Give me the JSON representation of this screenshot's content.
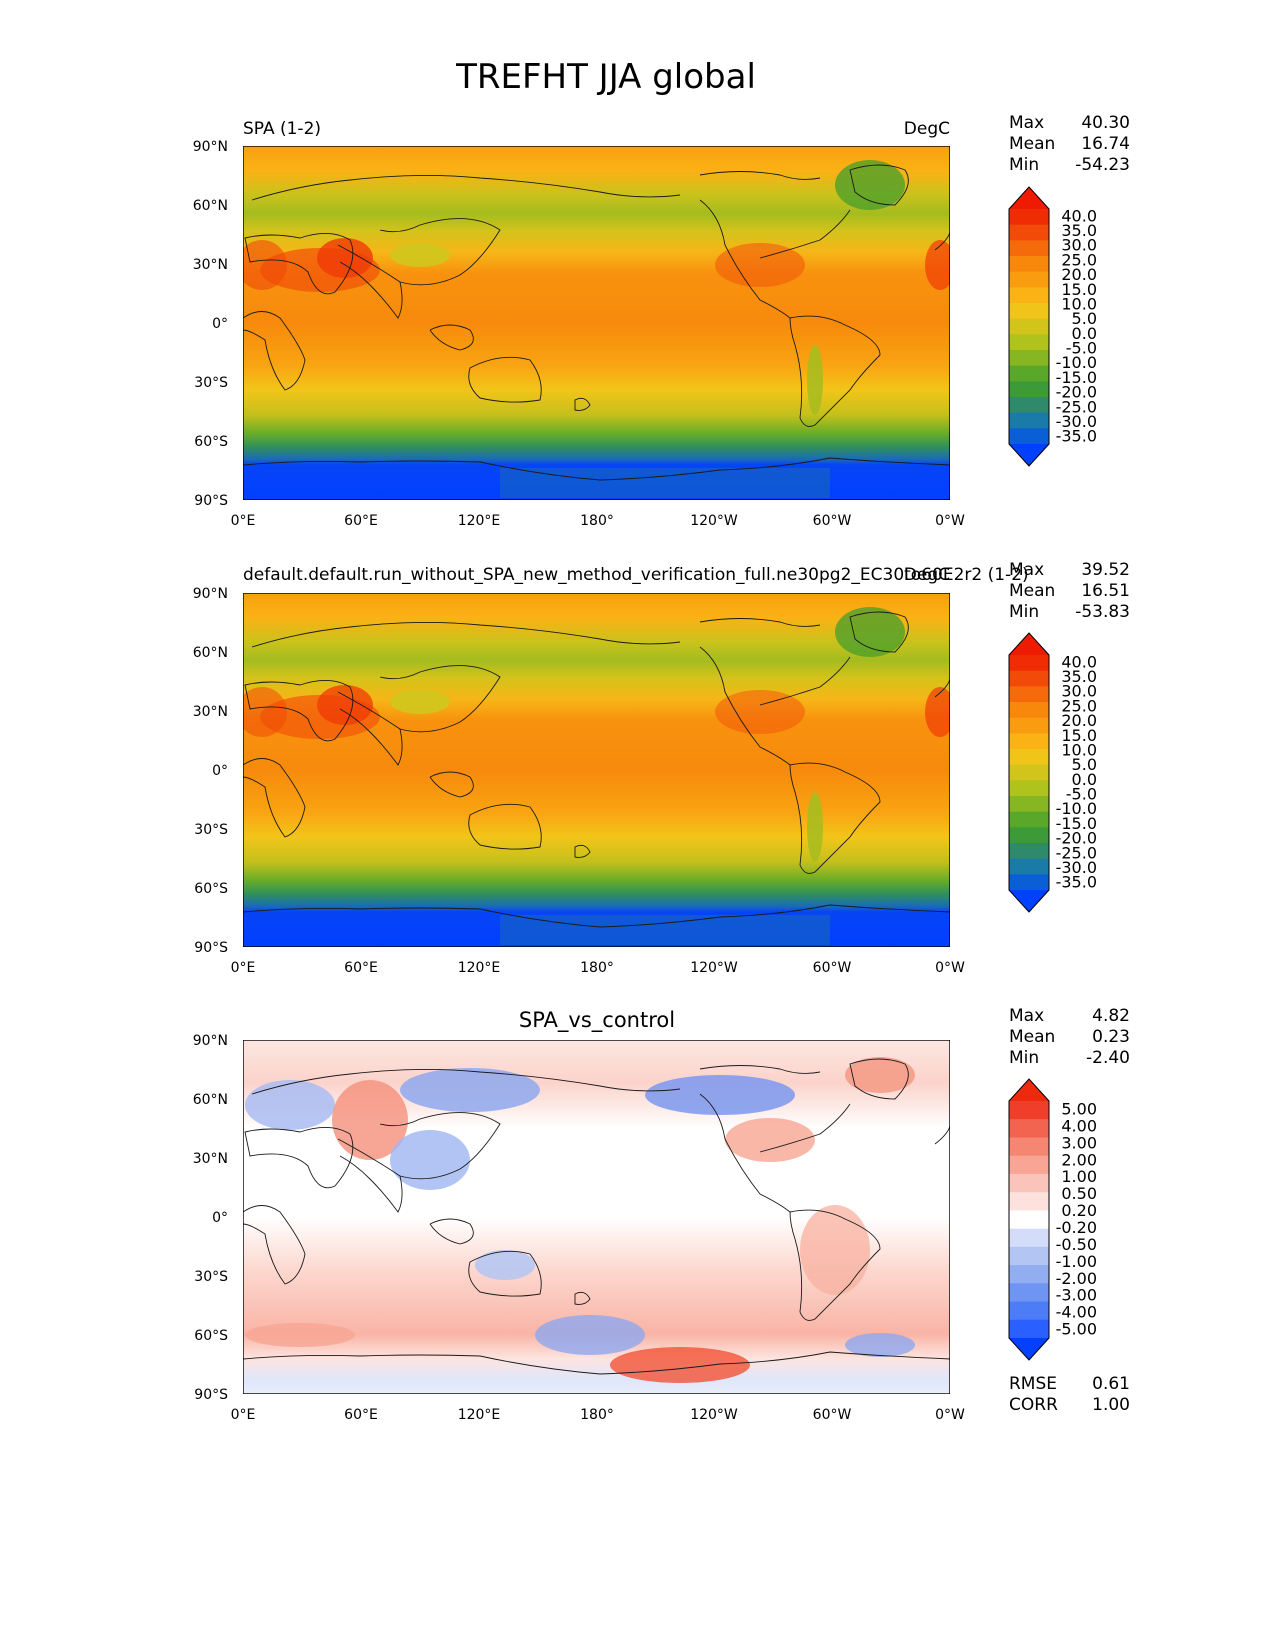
{
  "figure": {
    "title": "TREFHT JJA global"
  },
  "axes": {
    "lon_ticks": [
      "0°E",
      "60°E",
      "120°E",
      "180°",
      "120°W",
      "60°W",
      "0°W"
    ],
    "lat_ticks": [
      "90°N",
      "60°N",
      "30°N",
      "0°",
      "30°S",
      "60°S",
      "90°S"
    ]
  },
  "colors": {
    "abs_palette": [
      "#0040ff",
      "#0a5fd6",
      "#1a7aa8",
      "#2e8a6a",
      "#3c9a38",
      "#5aa82a",
      "#86b622",
      "#b0c21c",
      "#d2c41a",
      "#f0c419",
      "#fab215",
      "#fa9c10",
      "#f8880c",
      "#f56a0a",
      "#f24a08",
      "#f02c05",
      "#ee1a02"
    ],
    "diff_palette": [
      "#0540ff",
      "#2a60ff",
      "#4d7cf7",
      "#6f95f2",
      "#92adf0",
      "#b3c5f3",
      "#d3dcf8",
      "#ffffff",
      "#fde1dc",
      "#fbc4ba",
      "#f8a595",
      "#f58672",
      "#f26450",
      "#ef3f2b",
      "#ee2a0d"
    ],
    "land_outline": "#1a1a1a"
  },
  "panels": [
    {
      "name_left": "SPA (1-2)",
      "name_right": "DegC",
      "name_center": "",
      "stats": {
        "max_label": "Max",
        "max": "40.30",
        "mean_label": "Mean",
        "mean": "16.74",
        "min_label": "Min",
        "min": "-54.23"
      },
      "colorbar_labels": [
        "40.0",
        "35.0",
        "30.0",
        "25.0",
        "20.0",
        "15.0",
        "10.0",
        "5.0",
        "0.0",
        "-5.0",
        "-10.0",
        "-15.0",
        "-20.0",
        "-25.0",
        "-30.0",
        "-35.0"
      ]
    },
    {
      "name_left": "default.default.run_without_SPA_new_method_verification_full.ne30pg2_EC30to60E2r2 (1-2)",
      "name_right": "DegC",
      "name_center": "",
      "stats": {
        "max_label": "Max",
        "max": "39.52",
        "mean_label": "Mean",
        "mean": "16.51",
        "min_label": "Min",
        "min": "-53.83"
      },
      "colorbar_labels": [
        "40.0",
        "35.0",
        "30.0",
        "25.0",
        "20.0",
        "15.0",
        "10.0",
        "5.0",
        "0.0",
        "-5.0",
        "-10.0",
        "-15.0",
        "-20.0",
        "-25.0",
        "-30.0",
        "-35.0"
      ]
    },
    {
      "name_left": "",
      "name_right": "",
      "name_center": "SPA_vs_control",
      "stats": {
        "max_label": "Max",
        "max": "4.82",
        "mean_label": "Mean",
        "mean": "0.23",
        "min_label": "Min",
        "min": "-2.40"
      },
      "colorbar_labels": [
        "5.00",
        "4.00",
        "3.00",
        "2.00",
        "1.00",
        "0.50",
        "0.20",
        "-0.20",
        "-0.50",
        "-1.00",
        "-2.00",
        "-3.00",
        "-4.00",
        "-5.00"
      ],
      "extra_stats": {
        "rmse_label": "RMSE",
        "rmse": "0.61",
        "corr_label": "CORR",
        "corr": "1.00"
      }
    }
  ],
  "chart_data": [
    {
      "type": "heatmap",
      "title": "SPA (1-2)",
      "units": "DegC",
      "xlim": [
        0,
        360
      ],
      "ylim": [
        -90,
        90
      ],
      "x_ticks": [
        0,
        60,
        120,
        180,
        240,
        300,
        360
      ],
      "y_ticks": [
        90,
        60,
        30,
        0,
        -30,
        -60,
        -90
      ],
      "levels": [
        -35,
        -30,
        -25,
        -20,
        -15,
        -10,
        -5,
        0,
        5,
        10,
        15,
        20,
        25,
        30,
        35,
        40
      ],
      "max": 40.3,
      "mean": 16.74,
      "min": -54.23
    },
    {
      "type": "heatmap",
      "title": "default.default.run_without_SPA_new_method_verification_full.ne30pg2_EC30to60E2r2 (1-2)",
      "units": "DegC",
      "xlim": [
        0,
        360
      ],
      "ylim": [
        -90,
        90
      ],
      "levels": [
        -35,
        -30,
        -25,
        -20,
        -15,
        -10,
        -5,
        0,
        5,
        10,
        15,
        20,
        25,
        30,
        35,
        40
      ],
      "max": 39.52,
      "mean": 16.51,
      "min": -53.83
    },
    {
      "type": "heatmap",
      "title": "SPA_vs_control",
      "xlim": [
        0,
        360
      ],
      "ylim": [
        -90,
        90
      ],
      "levels": [
        -5,
        -4,
        -3,
        -2,
        -1,
        -0.5,
        -0.2,
        0.2,
        0.5,
        1,
        2,
        3,
        4,
        5
      ],
      "max": 4.82,
      "mean": 0.23,
      "min": -2.4,
      "rmse": 0.61,
      "corr": 1.0
    }
  ]
}
